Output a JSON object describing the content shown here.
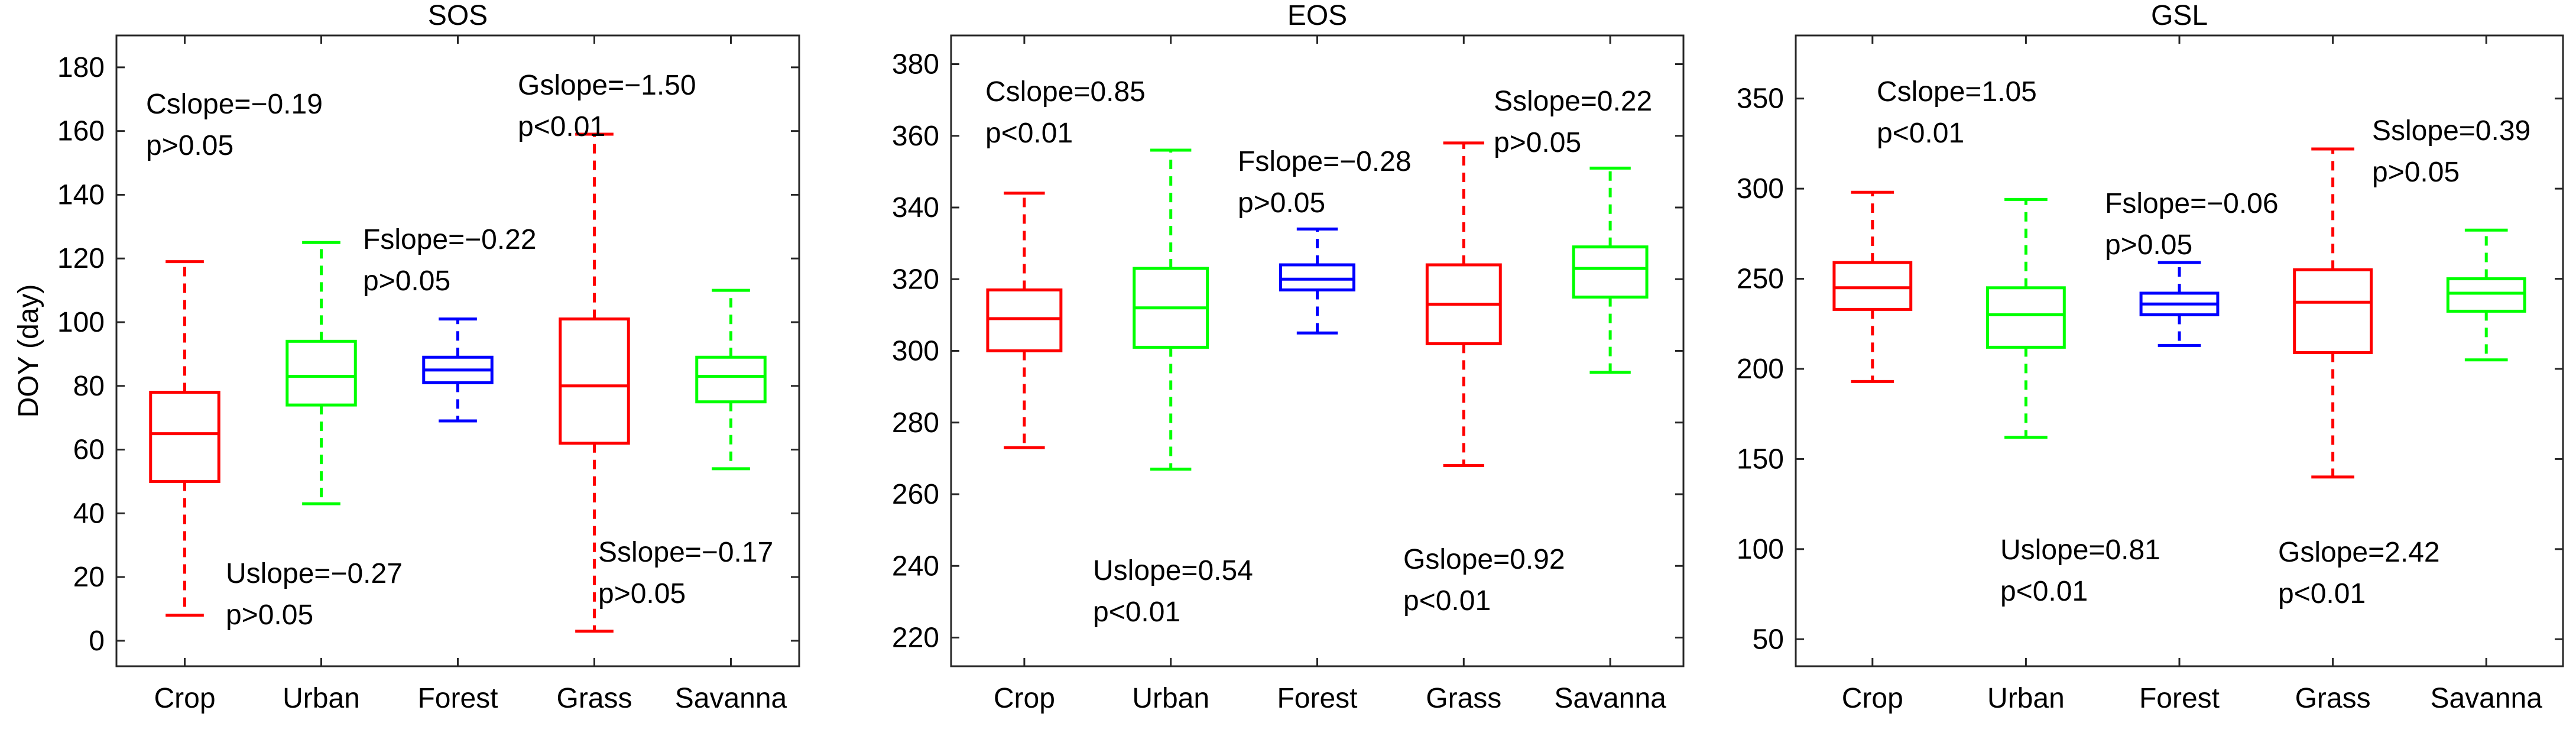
{
  "chart_data": [
    {
      "type": "box",
      "title": "SOS",
      "ylabel": "DOY (day)",
      "xlabel": "",
      "ylim": [
        -8,
        190
      ],
      "yticks": [
        0,
        20,
        40,
        60,
        80,
        100,
        120,
        140,
        160,
        180
      ],
      "categories": [
        "Crop",
        "Urban",
        "Forest",
        "Grass",
        "Savanna"
      ],
      "colors": [
        "#ff0000",
        "#00ff00",
        "#0000ff",
        "#ff0000",
        "#00ff00"
      ],
      "boxes": [
        {
          "whisker_low": 8,
          "q1": 50,
          "median": 65,
          "q3": 78,
          "whisker_high": 119
        },
        {
          "whisker_low": 43,
          "q1": 74,
          "median": 83,
          "q3": 94,
          "whisker_high": 125
        },
        {
          "whisker_low": 69,
          "q1": 81,
          "median": 85,
          "q3": 89,
          "whisker_high": 101
        },
        {
          "whisker_low": 3,
          "q1": 62,
          "median": 80,
          "q3": 101,
          "whisker_high": 159
        },
        {
          "whisker_low": 54,
          "q1": 75,
          "median": 83,
          "q3": 89,
          "whisker_high": 110
        }
      ],
      "annotations": [
        {
          "slope": "Cslope=−0.19",
          "p": "p>0.05"
        },
        {
          "slope": "Uslope=−0.27",
          "p": "p>0.05"
        },
        {
          "slope": "Fslope=−0.22",
          "p": "p>0.05"
        },
        {
          "slope": "Gslope=−1.50",
          "p": "p<0.01"
        },
        {
          "slope": "Sslope=−0.17",
          "p": "p>0.05"
        }
      ]
    },
    {
      "type": "box",
      "title": "EOS",
      "ylabel": "",
      "xlabel": "",
      "ylim": [
        212,
        388
      ],
      "yticks": [
        220,
        240,
        260,
        280,
        300,
        320,
        340,
        360,
        380
      ],
      "categories": [
        "Crop",
        "Urban",
        "Forest",
        "Grass",
        "Savanna"
      ],
      "colors": [
        "#ff0000",
        "#00ff00",
        "#0000ff",
        "#ff0000",
        "#00ff00"
      ],
      "boxes": [
        {
          "whisker_low": 273,
          "q1": 300,
          "median": 309,
          "q3": 317,
          "whisker_high": 344
        },
        {
          "whisker_low": 267,
          "q1": 301,
          "median": 312,
          "q3": 323,
          "whisker_high": 356
        },
        {
          "whisker_low": 305,
          "q1": 317,
          "median": 320,
          "q3": 324,
          "whisker_high": 334
        },
        {
          "whisker_low": 268,
          "q1": 302,
          "median": 313,
          "q3": 324,
          "whisker_high": 358
        },
        {
          "whisker_low": 294,
          "q1": 315,
          "median": 323,
          "q3": 329,
          "whisker_high": 351
        }
      ],
      "annotations": [
        {
          "slope": "Cslope=0.85",
          "p": "p<0.01"
        },
        {
          "slope": "Uslope=0.54",
          "p": "p<0.01"
        },
        {
          "slope": "Fslope=−0.28",
          "p": "p>0.05"
        },
        {
          "slope": "Gslope=0.92",
          "p": "p<0.01"
        },
        {
          "slope": "Sslope=0.22",
          "p": "p>0.05"
        }
      ]
    },
    {
      "type": "box",
      "title": "GSL",
      "ylabel": "",
      "xlabel": "",
      "ylim": [
        35,
        385
      ],
      "yticks": [
        50,
        100,
        150,
        200,
        250,
        300,
        350
      ],
      "categories": [
        "Crop",
        "Urban",
        "Forest",
        "Grass",
        "Savanna"
      ],
      "colors": [
        "#ff0000",
        "#00ff00",
        "#0000ff",
        "#ff0000",
        "#00ff00"
      ],
      "boxes": [
        {
          "whisker_low": 193,
          "q1": 233,
          "median": 245,
          "q3": 259,
          "whisker_high": 298
        },
        {
          "whisker_low": 162,
          "q1": 212,
          "median": 230,
          "q3": 245,
          "whisker_high": 294
        },
        {
          "whisker_low": 213,
          "q1": 230,
          "median": 236,
          "q3": 242,
          "whisker_high": 259
        },
        {
          "whisker_low": 140,
          "q1": 209,
          "median": 237,
          "q3": 255,
          "whisker_high": 322
        },
        {
          "whisker_low": 205,
          "q1": 232,
          "median": 242,
          "q3": 250,
          "whisker_high": 277
        }
      ],
      "annotations": [
        {
          "slope": "Cslope=1.05",
          "p": "p<0.01"
        },
        {
          "slope": "Uslope=0.81",
          "p": "p<0.01"
        },
        {
          "slope": "Fslope=−0.06",
          "p": "p>0.05"
        },
        {
          "slope": "Gslope=2.42",
          "p": "p<0.01"
        },
        {
          "slope": "Sslope=0.39",
          "p": "p>0.05"
        }
      ]
    }
  ]
}
